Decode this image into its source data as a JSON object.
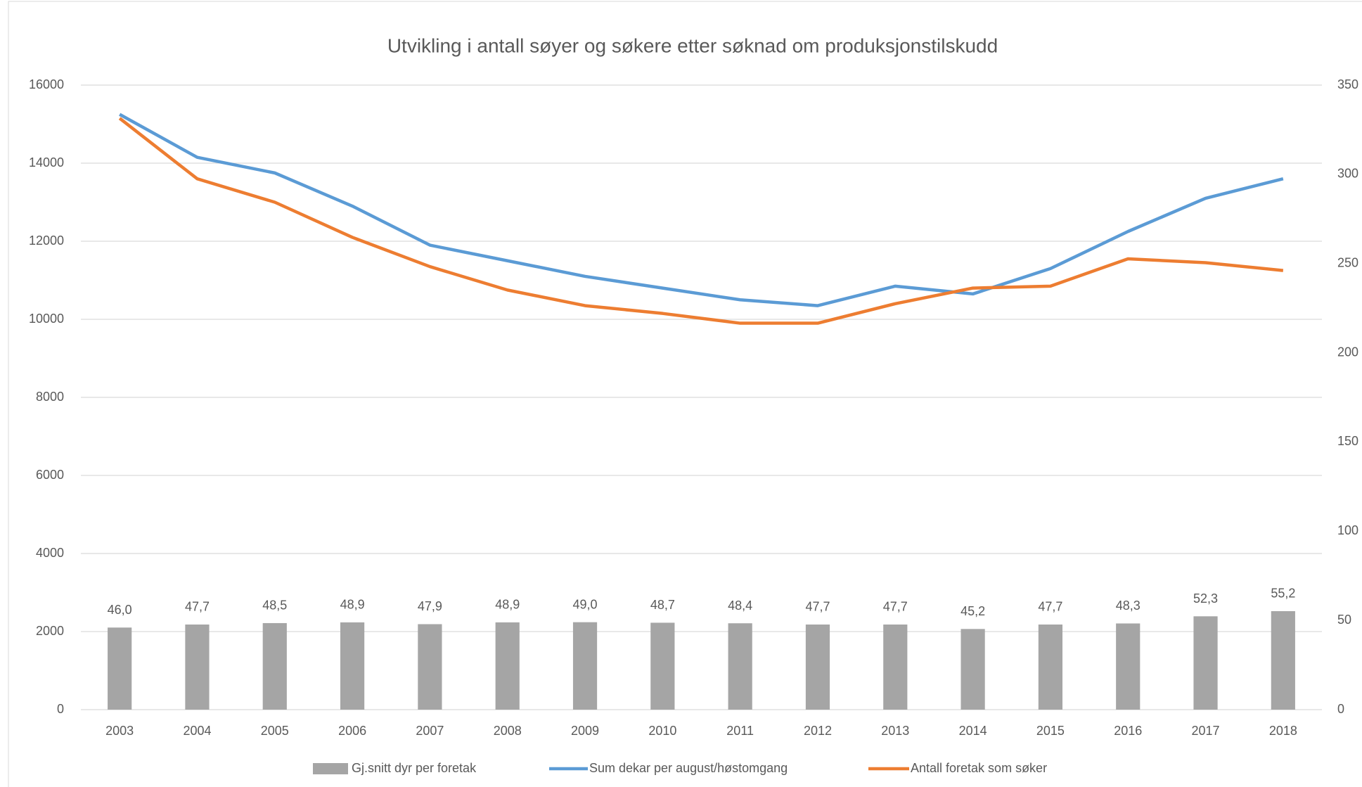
{
  "chart_data": {
    "type": "combo",
    "title": "Utvikling i antall søyer og søkere etter søknad om produksjonstilskudd",
    "categories": [
      "2003",
      "2004",
      "2005",
      "2006",
      "2007",
      "2008",
      "2009",
      "2010",
      "2011",
      "2012",
      "2013",
      "2014",
      "2015",
      "2016",
      "2017",
      "2018"
    ],
    "series": [
      {
        "name": "Gj.snitt dyr per foretak",
        "type": "bar",
        "axis": "y2",
        "color": "#a5a5a5",
        "values": [
          46.0,
          47.7,
          48.5,
          48.9,
          47.9,
          48.9,
          49.0,
          48.7,
          48.4,
          47.7,
          47.7,
          45.2,
          47.7,
          48.3,
          52.3,
          55.2
        ],
        "value_labels": [
          "46,0",
          "47,7",
          "48,5",
          "48,9",
          "47,9",
          "48,9",
          "49,0",
          "48,7",
          "48,4",
          "47,7",
          "47,7",
          "45,2",
          "47,7",
          "48,3",
          "52,3",
          "55,2"
        ]
      },
      {
        "name": "Sum dekar per august/høstomgang",
        "type": "line",
        "color": "#5b9bd5",
        "values": [
          15250,
          14150,
          13750,
          12900,
          11900,
          11500,
          11100,
          10800,
          10500,
          10350,
          10850,
          10650,
          11300,
          12250,
          13100,
          13600
        ]
      },
      {
        "name": "Antall foretak som søker",
        "type": "line",
        "color": "#ed7d31",
        "values": [
          15150,
          13600,
          13000,
          12100,
          11350,
          10750,
          10350,
          10150,
          9900,
          9900,
          10400,
          10800,
          10850,
          11550,
          11450,
          11250
        ]
      }
    ],
    "ylim": [
      0,
      16000
    ],
    "yticks": [
      0,
      2000,
      4000,
      6000,
      8000,
      10000,
      12000,
      14000,
      16000
    ],
    "y2lim": [
      0,
      350
    ],
    "y2ticks": [
      0,
      50,
      100,
      150,
      200,
      250,
      300,
      350
    ],
    "grid": true,
    "legend": "bottom"
  }
}
